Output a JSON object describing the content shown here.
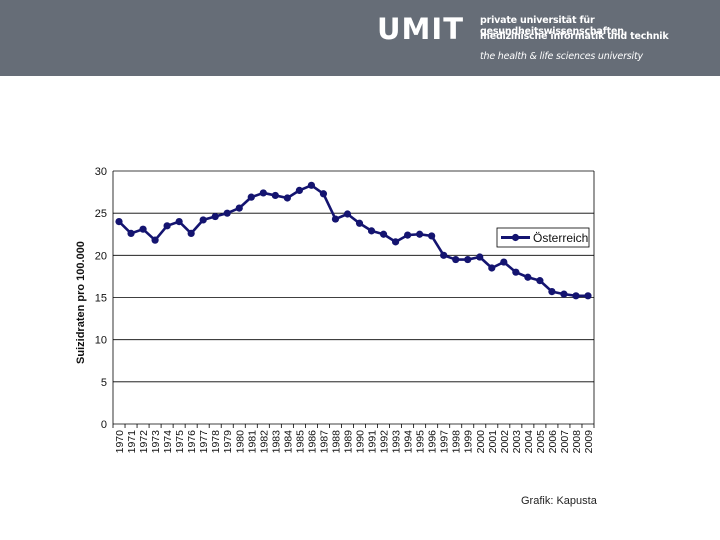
{
  "header": {
    "logo": "UMIT",
    "tagline_1": "private universität für gesundheitswissenschaften,",
    "tagline_2": "medizinische informatik und technik",
    "tagline_3": "the health & life sciences university",
    "background_color": "#666d77"
  },
  "credit": "Grafik: Kapusta",
  "chart_data": {
    "type": "line",
    "title": "",
    "xlabel": "",
    "ylabel": "Suizidraten pro 100.000",
    "ylim": [
      0,
      30
    ],
    "yticks": [
      0,
      5,
      10,
      15,
      20,
      25,
      30
    ],
    "grid": true,
    "legend_position": "right",
    "line_color": "#141470",
    "categories": [
      "1970",
      "1971",
      "1972",
      "1973",
      "1974",
      "1975",
      "1976",
      "1977",
      "1978",
      "1979",
      "1980",
      "1981",
      "1982",
      "1983",
      "1984",
      "1985",
      "1986",
      "1987",
      "1988",
      "1989",
      "1990",
      "1991",
      "1992",
      "1993",
      "1994",
      "1995",
      "1996",
      "1997",
      "1998",
      "1999",
      "2000",
      "2001",
      "2002",
      "2003",
      "2004",
      "2005",
      "2006",
      "2007",
      "2008",
      "2009"
    ],
    "series": [
      {
        "name": "Österreich",
        "values": [
          24.0,
          22.6,
          23.1,
          21.8,
          23.5,
          24.0,
          22.6,
          24.2,
          24.6,
          25.0,
          25.6,
          26.9,
          27.4,
          27.1,
          26.8,
          27.7,
          28.3,
          27.3,
          24.3,
          24.9,
          23.8,
          22.9,
          22.5,
          21.6,
          22.4,
          22.5,
          22.3,
          20.0,
          19.5,
          19.5,
          19.8,
          18.5,
          19.2,
          18.0,
          17.4,
          17.0,
          15.7,
          15.4,
          15.2,
          15.2
        ]
      }
    ]
  }
}
